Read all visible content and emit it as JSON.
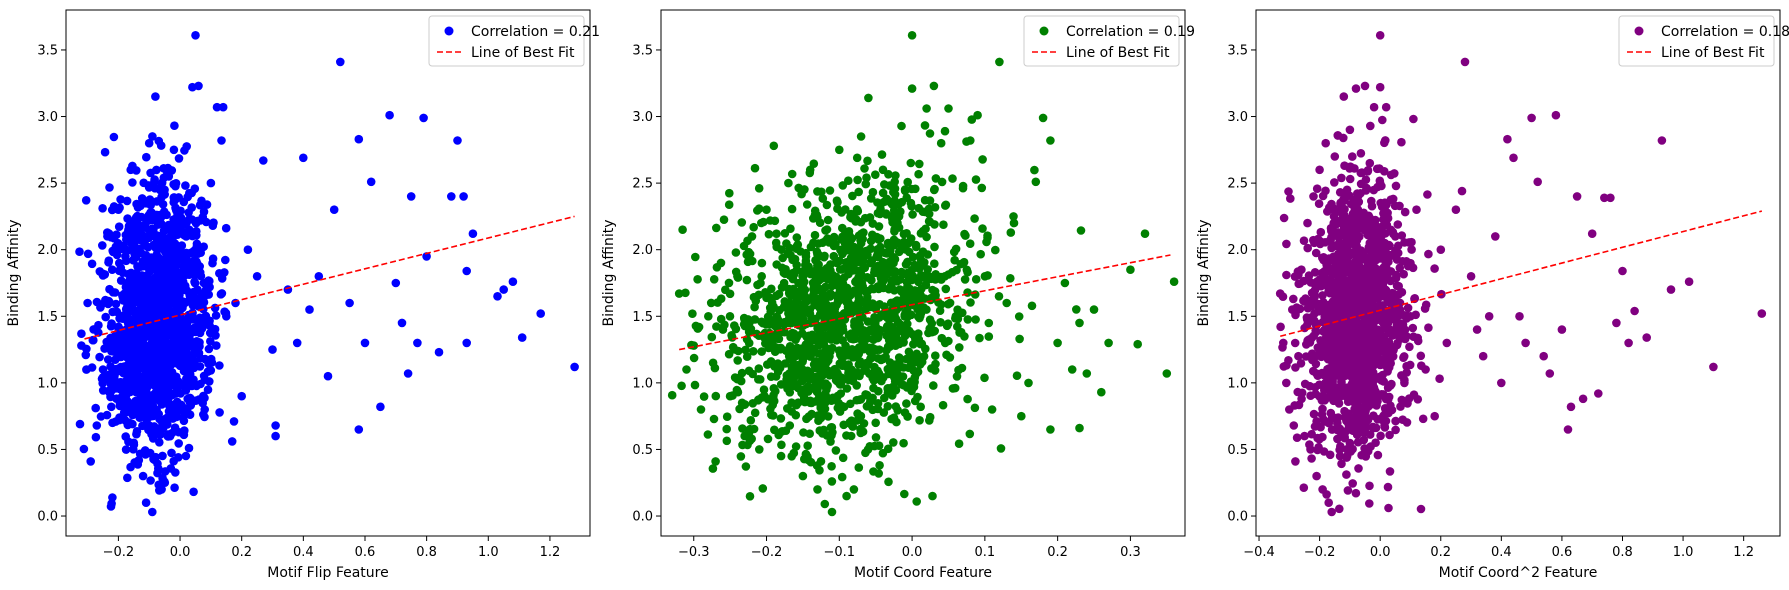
{
  "chart_data": [
    {
      "type": "scatter",
      "xlabel": "Motif Flip Feature",
      "ylabel": "Binding Affinity",
      "xlim": [
        -0.37,
        1.33
      ],
      "ylim": [
        -0.15,
        3.8
      ],
      "xticks": [
        -0.2,
        0.0,
        0.2,
        0.4,
        0.6,
        0.8,
        1.0,
        1.2
      ],
      "xtick_labels": [
        "−0.2",
        "0.0",
        "0.2",
        "0.4",
        "0.6",
        "0.8",
        "1.0",
        "1.2"
      ],
      "yticks": [
        0.0,
        0.5,
        1.0,
        1.5,
        2.0,
        2.5,
        3.0,
        3.5
      ],
      "ytick_labels": [
        "0.0",
        "0.5",
        "1.0",
        "1.5",
        "2.0",
        "2.5",
        "3.0",
        "3.5"
      ],
      "legend_position": "top-right",
      "series": [
        {
          "name": "Correlation = 0.21",
          "color": "#0000ff",
          "points": [
            [
              -0.32,
              1.28
            ],
            [
              -0.3,
              1.6
            ],
            [
              -0.29,
              0.41
            ],
            [
              -0.27,
              0.68
            ],
            [
              -0.25,
              1.1
            ],
            [
              -0.22,
              1.85
            ],
            [
              -0.2,
              2.3
            ],
            [
              -0.18,
              0.9
            ],
            [
              -0.16,
              2.6
            ],
            [
              -0.15,
              0.55
            ],
            [
              -0.14,
              1.4
            ],
            [
              -0.12,
              0.3
            ],
            [
              -0.11,
              0.1
            ],
            [
              -0.1,
              2.8
            ],
            [
              -0.09,
              0.03
            ],
            [
              -0.08,
              3.15
            ],
            [
              -0.07,
              1.7
            ],
            [
              -0.06,
              0.2
            ],
            [
              -0.05,
              2.45
            ],
            [
              -0.04,
              0.6
            ],
            [
              -0.02,
              2.75
            ],
            [
              0.0,
              1.2
            ],
            [
              0.02,
              2.1
            ],
            [
              0.04,
              3.22
            ],
            [
              0.05,
              3.61
            ],
            [
              0.06,
              3.23
            ],
            [
              0.08,
              0.8
            ],
            [
              0.1,
              2.5
            ],
            [
              0.12,
              3.07
            ],
            [
              0.14,
              3.07
            ],
            [
              0.15,
              1.5
            ],
            [
              0.18,
              1.6
            ],
            [
              0.2,
              0.9
            ],
            [
              0.22,
              2.0
            ],
            [
              0.25,
              1.8
            ],
            [
              0.27,
              2.67
            ],
            [
              0.3,
              1.25
            ],
            [
              0.31,
              0.6
            ],
            [
              0.31,
              0.68
            ],
            [
              0.35,
              1.7
            ],
            [
              0.38,
              1.3
            ],
            [
              0.4,
              2.69
            ],
            [
              0.42,
              1.55
            ],
            [
              0.45,
              1.8
            ],
            [
              0.48,
              1.05
            ],
            [
              0.5,
              2.3
            ],
            [
              0.52,
              3.41
            ],
            [
              0.55,
              1.6
            ],
            [
              0.58,
              2.83
            ],
            [
              0.58,
              0.65
            ],
            [
              0.6,
              1.3
            ],
            [
              0.62,
              2.51
            ],
            [
              0.65,
              0.82
            ],
            [
              0.68,
              3.01
            ],
            [
              0.7,
              1.75
            ],
            [
              0.72,
              1.45
            ],
            [
              0.74,
              1.07
            ],
            [
              0.75,
              2.4
            ],
            [
              0.77,
              1.3
            ],
            [
              0.79,
              2.99
            ],
            [
              0.8,
              1.95
            ],
            [
              0.84,
              1.23
            ],
            [
              0.88,
              2.4
            ],
            [
              0.9,
              2.82
            ],
            [
              0.92,
              2.4
            ],
            [
              0.93,
              1.3
            ],
            [
              0.93,
              1.84
            ],
            [
              0.95,
              2.12
            ],
            [
              1.03,
              1.65
            ],
            [
              1.05,
              1.7
            ],
            [
              1.08,
              1.76
            ],
            [
              1.11,
              1.34
            ],
            [
              1.17,
              1.52
            ],
            [
              1.28,
              1.12
            ]
          ],
          "best_fit": {
            "name": "Line of Best Fit",
            "color": "#ff0000",
            "x": [
              -0.31,
              1.28
            ],
            "y": [
              1.33,
              2.25
            ]
          }
        }
      ]
    },
    {
      "type": "scatter",
      "xlabel": "Motif Coord Feature",
      "ylabel": "Binding Affinity",
      "xlim": [
        -0.345,
        0.375
      ],
      "ylim": [
        -0.15,
        3.8
      ],
      "xticks": [
        -0.3,
        -0.2,
        -0.1,
        0.0,
        0.1,
        0.2,
        0.3
      ],
      "xtick_labels": [
        "−0.3",
        "−0.2",
        "−0.1",
        "0.0",
        "0.1",
        "0.2",
        "0.3"
      ],
      "yticks": [
        0.0,
        0.5,
        1.0,
        1.5,
        2.0,
        2.5,
        3.0,
        3.5
      ],
      "ytick_labels": [
        "0.0",
        "0.5",
        "1.0",
        "1.5",
        "2.0",
        "2.5",
        "3.0",
        "3.5"
      ],
      "legend_position": "top-right",
      "series": [
        {
          "name": "Correlation = 0.19",
          "color": "#008000",
          "points": [
            [
              -0.32,
              1.67
            ],
            [
              -0.31,
              1.1
            ],
            [
              -0.3,
              1.28
            ],
            [
              -0.29,
              0.8
            ],
            [
              -0.28,
              1.5
            ],
            [
              -0.27,
              0.41
            ],
            [
              -0.26,
              1.4
            ],
            [
              -0.25,
              0.9
            ],
            [
              -0.24,
              1.8
            ],
            [
              -0.23,
              0.6
            ],
            [
              -0.22,
              2.1
            ],
            [
              -0.21,
              0.5
            ],
            [
              -0.2,
              2.3
            ],
            [
              -0.19,
              2.78
            ],
            [
              -0.18,
              0.45
            ],
            [
              -0.17,
              2.5
            ],
            [
              -0.16,
              1.2
            ],
            [
              -0.15,
              0.3
            ],
            [
              -0.14,
              2.6
            ],
            [
              -0.13,
              0.2
            ],
            [
              -0.12,
              0.09
            ],
            [
              -0.11,
              0.03
            ],
            [
              -0.1,
              2.75
            ],
            [
              -0.09,
              0.15
            ],
            [
              -0.08,
              0.2
            ],
            [
              -0.07,
              2.85
            ],
            [
              -0.06,
              3.14
            ],
            [
              -0.05,
              0.7
            ],
            [
              -0.04,
              2.6
            ],
            [
              -0.02,
              2.2
            ],
            [
              0.0,
              3.61
            ],
            [
              0.0,
              3.21
            ],
            [
              0.02,
              3.06
            ],
            [
              0.03,
              3.23
            ],
            [
              0.04,
              2.8
            ],
            [
              0.05,
              3.06
            ],
            [
              0.06,
              1.5
            ],
            [
              0.08,
              2.82
            ],
            [
              0.09,
              3.01
            ],
            [
              0.1,
              1.8
            ],
            [
              0.11,
              0.8
            ],
            [
              0.12,
              3.41
            ],
            [
              0.13,
              1.6
            ],
            [
              0.14,
              2.2
            ],
            [
              0.15,
              0.75
            ],
            [
              0.16,
              1.0
            ],
            [
              0.17,
              2.51
            ],
            [
              0.18,
              2.99
            ],
            [
              0.19,
              2.82
            ],
            [
              0.19,
              0.65
            ],
            [
              0.2,
              1.3
            ],
            [
              0.21,
              1.75
            ],
            [
              0.22,
              1.1
            ],
            [
              0.23,
              1.45
            ],
            [
              0.23,
              0.66
            ],
            [
              0.24,
              1.07
            ],
            [
              0.25,
              1.55
            ],
            [
              0.26,
              0.93
            ],
            [
              0.27,
              1.3
            ],
            [
              0.3,
              1.85
            ],
            [
              0.31,
              1.29
            ],
            [
              0.32,
              2.12
            ],
            [
              0.35,
              1.07
            ],
            [
              0.36,
              1.76
            ]
          ],
          "best_fit": {
            "name": "Line of Best Fit",
            "color": "#ff0000",
            "x": [
              -0.32,
              0.355
            ],
            "y": [
              1.25,
              1.96
            ]
          }
        }
      ]
    },
    {
      "type": "scatter",
      "xlabel": "Motif Coord^2 Feature",
      "ylabel": "Binding Affinity",
      "xlim": [
        -0.41,
        1.32
      ],
      "ylim": [
        -0.15,
        3.8
      ],
      "xticks": [
        -0.4,
        -0.2,
        0.0,
        0.2,
        0.4,
        0.6,
        0.8,
        1.0,
        1.2
      ],
      "xtick_labels": [
        "−0.4",
        "−0.2",
        "0.0",
        "0.2",
        "0.4",
        "0.6",
        "0.8",
        "1.0",
        "1.2"
      ],
      "yticks": [
        0.0,
        0.5,
        1.0,
        1.5,
        2.0,
        2.5,
        3.0,
        3.5
      ],
      "ytick_labels": [
        "0.0",
        "0.5",
        "1.0",
        "1.5",
        "2.0",
        "2.5",
        "3.0",
        "3.5"
      ],
      "legend_position": "top-right",
      "series": [
        {
          "name": "Correlation = 0.18",
          "color": "#800080",
          "points": [
            [
              -0.33,
              1.67
            ],
            [
              -0.32,
              1.3
            ],
            [
              -0.31,
              1.0
            ],
            [
              -0.3,
              0.8
            ],
            [
              -0.29,
              1.55
            ],
            [
              -0.28,
              0.41
            ],
            [
              -0.27,
              1.2
            ],
            [
              -0.26,
              1.85
            ],
            [
              -0.25,
              0.6
            ],
            [
              -0.24,
              2.2
            ],
            [
              -0.23,
              0.5
            ],
            [
              -0.22,
              2.4
            ],
            [
              -0.21,
              0.3
            ],
            [
              -0.2,
              2.6
            ],
            [
              -0.19,
              0.2
            ],
            [
              -0.18,
              2.8
            ],
            [
              -0.17,
              0.1
            ],
            [
              -0.16,
              0.03
            ],
            [
              -0.15,
              2.7
            ],
            [
              -0.12,
              3.15
            ],
            [
              -0.1,
              2.9
            ],
            [
              -0.08,
              3.21
            ],
            [
              -0.05,
              3.23
            ],
            [
              -0.02,
              3.07
            ],
            [
              0.0,
              3.61
            ],
            [
              0.0,
              3.22
            ],
            [
              0.02,
              3.07
            ],
            [
              0.05,
              2.1
            ],
            [
              0.08,
              1.0
            ],
            [
              0.1,
              1.5
            ],
            [
              0.12,
              2.3
            ],
            [
              0.15,
              1.1
            ],
            [
              0.18,
              0.75
            ],
            [
              0.2,
              2.0
            ],
            [
              0.22,
              1.3
            ],
            [
              0.25,
              2.3
            ],
            [
              0.27,
              2.44
            ],
            [
              0.28,
              3.41
            ],
            [
              0.3,
              1.8
            ],
            [
              0.32,
              1.4
            ],
            [
              0.34,
              1.2
            ],
            [
              0.36,
              1.5
            ],
            [
              0.38,
              2.1
            ],
            [
              0.4,
              1.0
            ],
            [
              0.42,
              2.83
            ],
            [
              0.44,
              2.69
            ],
            [
              0.46,
              1.5
            ],
            [
              0.48,
              1.3
            ],
            [
              0.5,
              2.99
            ],
            [
              0.52,
              2.51
            ],
            [
              0.54,
              1.2
            ],
            [
              0.56,
              1.07
            ],
            [
              0.58,
              3.01
            ],
            [
              0.6,
              1.4
            ],
            [
              0.62,
              0.65
            ],
            [
              0.63,
              0.82
            ],
            [
              0.65,
              2.4
            ],
            [
              0.67,
              0.88
            ],
            [
              0.7,
              2.12
            ],
            [
              0.72,
              0.92
            ],
            [
              0.74,
              2.39
            ],
            [
              0.76,
              2.39
            ],
            [
              0.78,
              1.45
            ],
            [
              0.8,
              1.84
            ],
            [
              0.82,
              1.3
            ],
            [
              0.84,
              1.54
            ],
            [
              0.88,
              1.34
            ],
            [
              0.93,
              2.82
            ],
            [
              0.96,
              1.7
            ],
            [
              1.02,
              1.76
            ],
            [
              1.1,
              1.12
            ],
            [
              1.26,
              1.52
            ]
          ],
          "best_fit": {
            "name": "Line of Best Fit",
            "color": "#ff0000",
            "x": [
              -0.33,
              1.26
            ],
            "y": [
              1.35,
              2.29
            ]
          }
        }
      ]
    }
  ]
}
